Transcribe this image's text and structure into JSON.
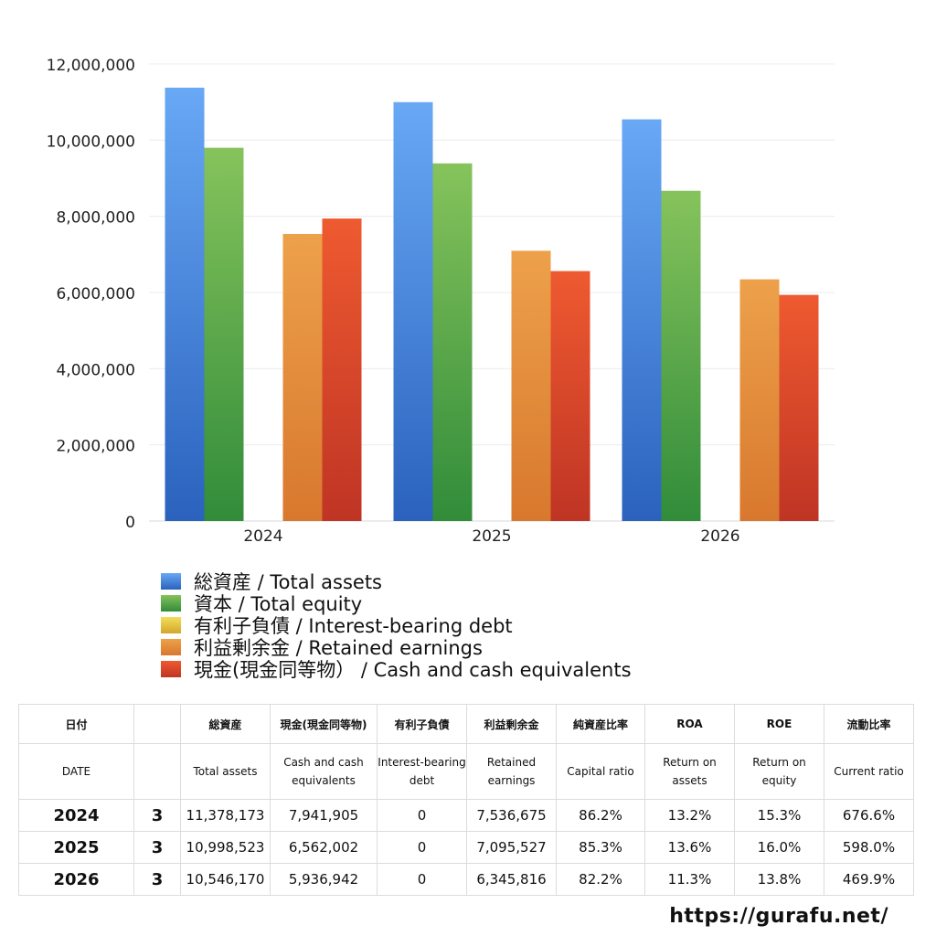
{
  "chart_data": {
    "type": "bar",
    "categories": [
      "2024",
      "2025",
      "2026"
    ],
    "ylim": [
      0,
      12000000
    ],
    "y_ticks": [
      0,
      2000000,
      4000000,
      6000000,
      8000000,
      10000000,
      12000000
    ],
    "y_tick_labels": [
      "0",
      "2,000,000",
      "4,000,000",
      "6,000,000",
      "8,000,000",
      "10,000,000",
      "12,000,000"
    ],
    "grid": true,
    "legend_position": "bottom",
    "series": [
      {
        "name": "総資産 / Total assets",
        "values": [
          11378173,
          10998523,
          10546170
        ],
        "color_top": "#68a8f5",
        "color_bottom": "#2a62bd"
      },
      {
        "name": "資本 / Total equity",
        "values": [
          9800000,
          9390000,
          8670000
        ],
        "color_top": "#86c35c",
        "color_bottom": "#318c3a"
      },
      {
        "name": "有利子負債 / Interest-bearing debt",
        "values": [
          0,
          0,
          0
        ],
        "color_top": "#f2de5a",
        "color_bottom": "#d4a62a"
      },
      {
        "name": "利益剰余金 / Retained earnings",
        "values": [
          7536675,
          7095527,
          6345816
        ],
        "color_top": "#eda14a",
        "color_bottom": "#d8782e"
      },
      {
        "name": "現金(現金同等物）  /  Cash and cash equivalents",
        "values": [
          7941905,
          6562002,
          5936942
        ],
        "color_top": "#ee5a30",
        "color_bottom": "#bf3424"
      }
    ]
  },
  "table": {
    "header_jp": [
      "日付",
      "",
      "総資産",
      "現金(現金同等物)",
      "有利子負債",
      "利益剰余金",
      "純資産比率",
      "ROA",
      "ROE",
      "流動比率"
    ],
    "header_en": [
      "DATE",
      "",
      "Total assets",
      "Cash and cash equivalents",
      "Interest-bearing debt",
      "Retained earnings",
      "Capital ratio",
      "Return on assets",
      "Return on equity",
      "Current ratio"
    ],
    "rows": [
      [
        "2024",
        "3",
        "11,378,173",
        "7,941,905",
        "0",
        "7,536,675",
        "86.2%",
        "13.2%",
        "15.3%",
        "676.6%"
      ],
      [
        "2025",
        "3",
        "10,998,523",
        "6,562,002",
        "0",
        "7,095,527",
        "85.3%",
        "13.6%",
        "16.0%",
        "598.0%"
      ],
      [
        "2026",
        "3",
        "10,546,170",
        "5,936,942",
        "0",
        "6,345,816",
        "82.2%",
        "11.3%",
        "13.8%",
        "469.9%"
      ]
    ]
  },
  "footer": {
    "url": "https://gurafu.net/"
  }
}
